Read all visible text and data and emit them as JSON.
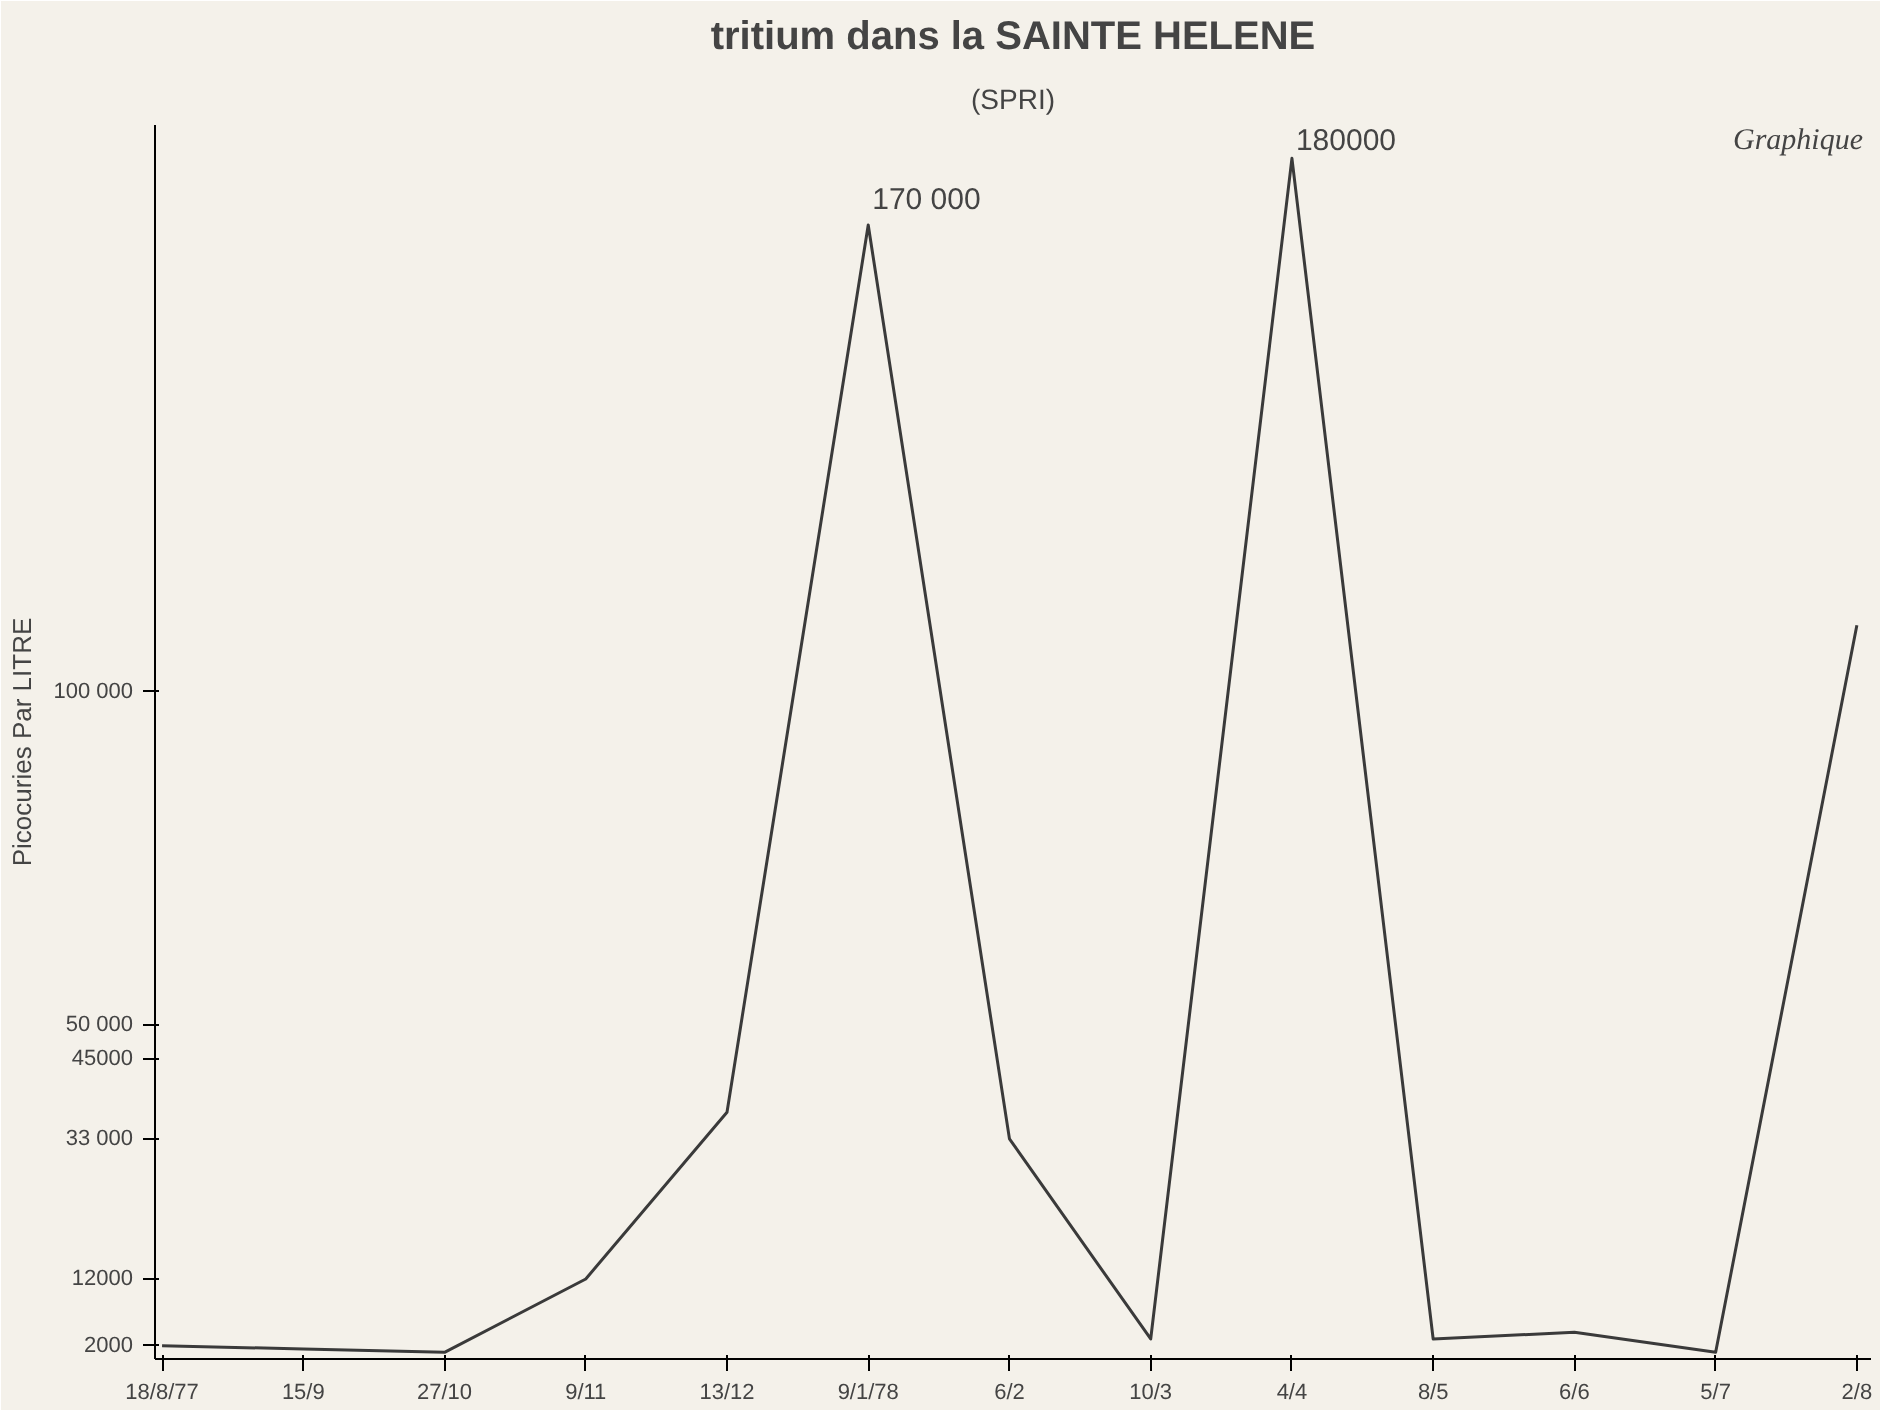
{
  "chart_data": {
    "type": "line",
    "title": "tritium dans la SAINTE HELENE",
    "subtitle": "(SPRI)",
    "ylabel": "Picocuries Par LITRE",
    "categories": [
      "18/8/77",
      "15/9",
      "27/10",
      "9/11",
      "13/12",
      "9/1/78",
      "6/2",
      "10/3",
      "4/4",
      "8/5",
      "6/6",
      "5/7",
      "2/8"
    ],
    "series": [
      {
        "color": "#3a3a3a",
        "values": [
          2000,
          1500,
          1000,
          12000,
          37000,
          170000,
          33000,
          3000,
          180000,
          3000,
          4000,
          1000,
          110000
        ]
      }
    ],
    "ylim": [
      0,
      185000
    ],
    "yticks": [
      {
        "value": 2000,
        "label": "2000"
      },
      {
        "value": 12000,
        "label": "12000"
      },
      {
        "value": 33000,
        "label": "33 000"
      },
      {
        "value": 45000,
        "label": "45000"
      },
      {
        "value": 50000,
        "label": "50 000"
      },
      {
        "value": 100000,
        "label": "100 000"
      }
    ],
    "annotations": [
      {
        "text": "170 000",
        "x": "9/1/78",
        "y": 170000
      },
      {
        "text": "180000",
        "x": "4/4",
        "y": 180000
      },
      "Graphique"
    ],
    "grid": false,
    "marker": "none",
    "line_style": "solid"
  }
}
